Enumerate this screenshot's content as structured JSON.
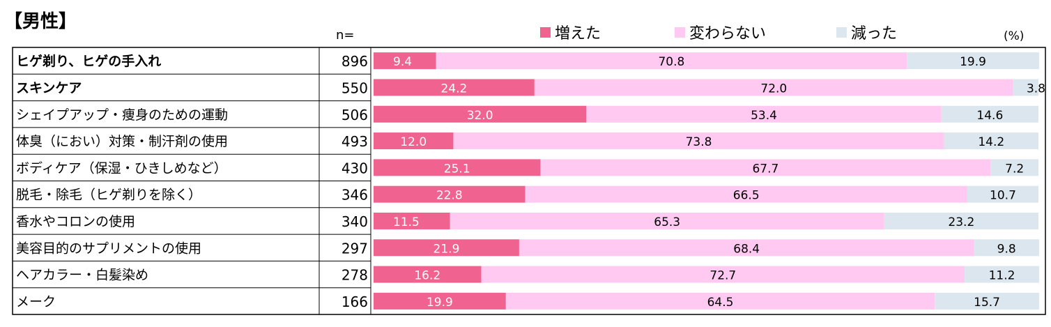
{
  "title": "【男性】",
  "n_label": "n=",
  "unit_label": "(%)",
  "colors": {
    "increased": "#f0628f",
    "unchanged": "#ffc9f2",
    "decreased": "#dce6ee"
  },
  "chart_data": {
    "type": "bar",
    "orientation": "horizontal",
    "stacked": true,
    "xlim": [
      0,
      100
    ],
    "legend_position": "top",
    "categories": [
      "ヒゲ剃り、ヒゲの手入れ",
      "スキンケア",
      "シェイプアップ・痩身のための運動",
      "体臭（におい）対策・制汗剤の使用",
      "ボディケア（保湿・ひきしめなど）",
      "脱毛・除毛（ヒゲ剃りを除く）",
      "香水やコロンの使用",
      "美容目的のサプリメントの使用",
      "ヘアカラー・白髪染め",
      "メーク"
    ],
    "bold_categories": [
      0,
      1
    ],
    "n": [
      "896",
      "550",
      "506",
      "493",
      "430",
      "346",
      "340",
      "297",
      "278",
      "166"
    ],
    "series": [
      {
        "name": "増えた",
        "values": [
          9.4,
          24.2,
          32.0,
          12.0,
          25.1,
          22.8,
          11.5,
          21.9,
          16.2,
          19.9
        ],
        "labels": [
          "9.4",
          "24.2",
          "32.0",
          "12.0",
          "25.1",
          "22.8",
          "11.5",
          "21.9",
          "16.2",
          "19.9"
        ]
      },
      {
        "name": "変わらない",
        "values": [
          70.8,
          72.0,
          53.4,
          73.8,
          67.7,
          66.5,
          65.3,
          68.4,
          72.7,
          64.5
        ],
        "labels": [
          "70.8",
          "72.0",
          "53.4",
          "73.8",
          "67.7",
          "66.5",
          "65.3",
          "68.4",
          "72.7",
          "64.5"
        ]
      },
      {
        "name": "減った",
        "values": [
          19.9,
          3.8,
          14.6,
          14.2,
          7.2,
          10.7,
          23.2,
          9.8,
          11.2,
          15.7
        ],
        "labels": [
          "19.9",
          "3.8",
          "14.6",
          "14.2",
          "7.2",
          "10.7",
          "23.2",
          "9.8",
          "11.2",
          "15.7"
        ]
      }
    ]
  }
}
